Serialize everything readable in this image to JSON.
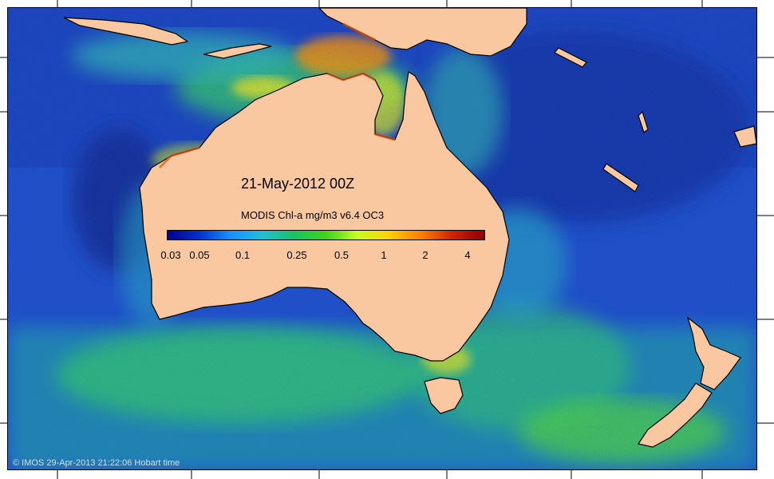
{
  "map": {
    "date_label": "21-May-2012 00Z",
    "colorbar": {
      "title": "MODIS Chl-a mg/m3 v6.4 OC3",
      "ticks": [
        "0.03",
        "0.05",
        "0.1",
        "0.25",
        "0.5",
        "1",
        "2",
        "4"
      ],
      "ramp": [
        "#00008b",
        "#0030d0",
        "#1e90ff",
        "#20c0d0",
        "#20c060",
        "#40d020",
        "#c8ff20",
        "#ffd000",
        "#ff8000",
        "#d02000",
        "#8b0000"
      ]
    },
    "copyright": "© IMOS 29-Apr-2013 21:22:06 Hobart time",
    "colors": {
      "land": "#fac8a0",
      "coastline": "#000000",
      "ocean_deep": "#1a3fb4",
      "ocean_mid": "#1e90ff",
      "ocean_green": "#20c060"
    }
  }
}
